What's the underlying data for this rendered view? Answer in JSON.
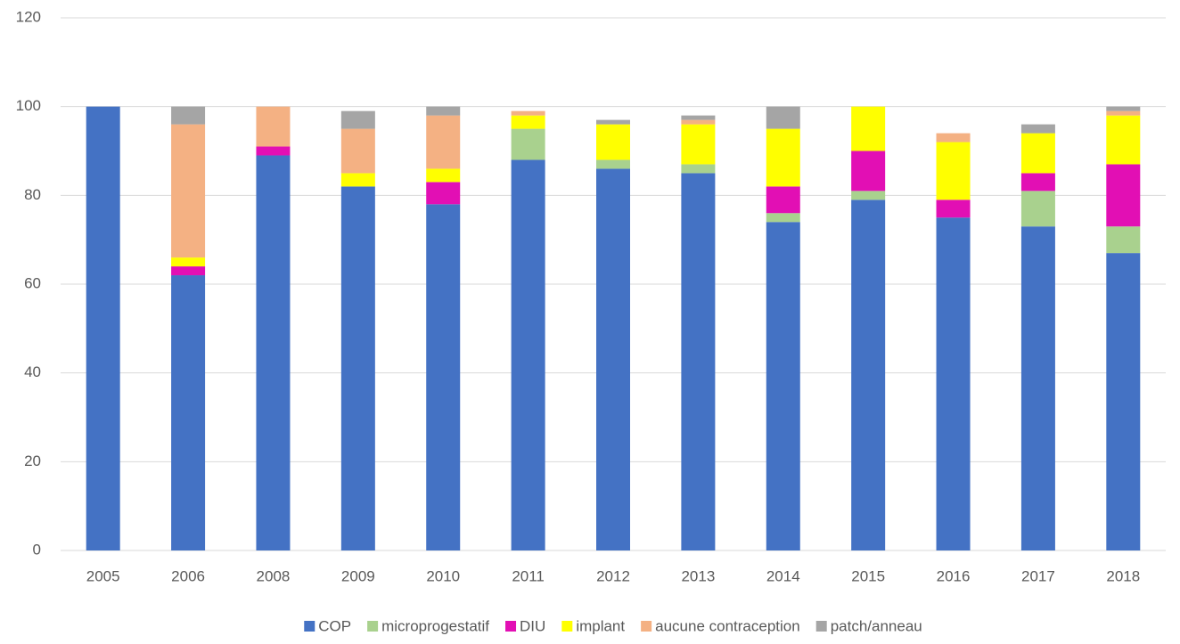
{
  "chart_data": {
    "type": "stacked_bar",
    "categories": [
      "2005",
      "2006",
      "2008",
      "2009",
      "2010",
      "2011",
      "2012",
      "2013",
      "2014",
      "2015",
      "2016",
      "2017",
      "2018"
    ],
    "series": [
      {
        "name": "COP",
        "color": "#4472c4",
        "values": [
          100,
          62,
          89,
          82,
          78,
          88,
          86,
          85,
          74,
          79,
          75,
          73,
          67
        ]
      },
      {
        "name": "microprogestatif",
        "color": "#a9d18e",
        "values": [
          0,
          0,
          0,
          0,
          0,
          7,
          2,
          2,
          2,
          2,
          0,
          8,
          6
        ]
      },
      {
        "name": "DIU",
        "color": "#e20fb4",
        "values": [
          0,
          2,
          2,
          0,
          5,
          0,
          0,
          0,
          6,
          9,
          4,
          4,
          14
        ]
      },
      {
        "name": "implant",
        "color": "#ffff00",
        "values": [
          0,
          2,
          0,
          3,
          3,
          3,
          8,
          9,
          13,
          10,
          13,
          9,
          11
        ]
      },
      {
        "name": "aucune contraception",
        "color": "#f4b183",
        "values": [
          0,
          30,
          9,
          10,
          12,
          1,
          0,
          1,
          0,
          0,
          2,
          0,
          1
        ]
      },
      {
        "name": "patch/anneau",
        "color": "#a5a5a5",
        "values": [
          0,
          4,
          0,
          4,
          2,
          0,
          1,
          1,
          5,
          0,
          0,
          2,
          1
        ]
      }
    ],
    "ylim": [
      0,
      120
    ],
    "yticks": [
      0,
      20,
      40,
      60,
      80,
      100,
      120
    ],
    "grid": true,
    "legend": "bottom"
  }
}
